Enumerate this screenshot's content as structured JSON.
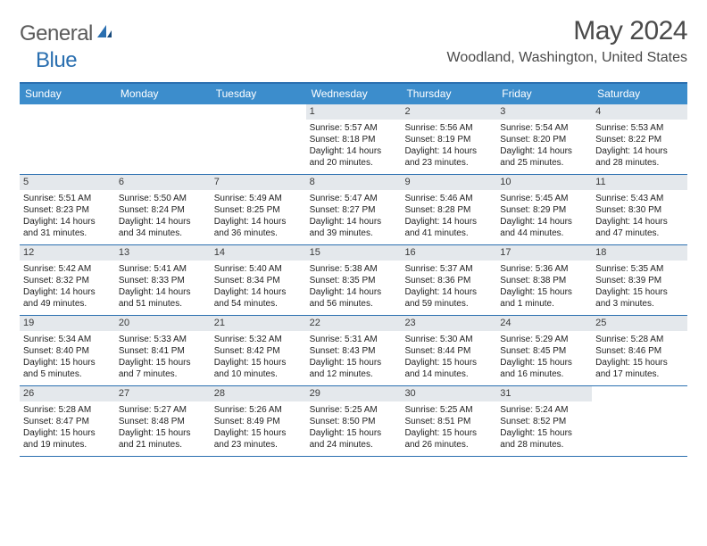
{
  "brand": {
    "part1": "General",
    "part2": "Blue"
  },
  "title": {
    "month": "May 2024",
    "location": "Woodland, Washington, United States"
  },
  "colors": {
    "header_bg": "#3c8dcc",
    "border": "#2a6fb0",
    "daynum_bg": "#e4e8ec",
    "text": "#222222",
    "title_text": "#4a4a4a"
  },
  "day_headers": [
    "Sunday",
    "Monday",
    "Tuesday",
    "Wednesday",
    "Thursday",
    "Friday",
    "Saturday"
  ],
  "weeks": [
    [
      {
        "n": "",
        "sunrise": "",
        "sunset": "",
        "daylight": ""
      },
      {
        "n": "",
        "sunrise": "",
        "sunset": "",
        "daylight": ""
      },
      {
        "n": "",
        "sunrise": "",
        "sunset": "",
        "daylight": ""
      },
      {
        "n": "1",
        "sunrise": "Sunrise: 5:57 AM",
        "sunset": "Sunset: 8:18 PM",
        "daylight": "Daylight: 14 hours and 20 minutes."
      },
      {
        "n": "2",
        "sunrise": "Sunrise: 5:56 AM",
        "sunset": "Sunset: 8:19 PM",
        "daylight": "Daylight: 14 hours and 23 minutes."
      },
      {
        "n": "3",
        "sunrise": "Sunrise: 5:54 AM",
        "sunset": "Sunset: 8:20 PM",
        "daylight": "Daylight: 14 hours and 25 minutes."
      },
      {
        "n": "4",
        "sunrise": "Sunrise: 5:53 AM",
        "sunset": "Sunset: 8:22 PM",
        "daylight": "Daylight: 14 hours and 28 minutes."
      }
    ],
    [
      {
        "n": "5",
        "sunrise": "Sunrise: 5:51 AM",
        "sunset": "Sunset: 8:23 PM",
        "daylight": "Daylight: 14 hours and 31 minutes."
      },
      {
        "n": "6",
        "sunrise": "Sunrise: 5:50 AM",
        "sunset": "Sunset: 8:24 PM",
        "daylight": "Daylight: 14 hours and 34 minutes."
      },
      {
        "n": "7",
        "sunrise": "Sunrise: 5:49 AM",
        "sunset": "Sunset: 8:25 PM",
        "daylight": "Daylight: 14 hours and 36 minutes."
      },
      {
        "n": "8",
        "sunrise": "Sunrise: 5:47 AM",
        "sunset": "Sunset: 8:27 PM",
        "daylight": "Daylight: 14 hours and 39 minutes."
      },
      {
        "n": "9",
        "sunrise": "Sunrise: 5:46 AM",
        "sunset": "Sunset: 8:28 PM",
        "daylight": "Daylight: 14 hours and 41 minutes."
      },
      {
        "n": "10",
        "sunrise": "Sunrise: 5:45 AM",
        "sunset": "Sunset: 8:29 PM",
        "daylight": "Daylight: 14 hours and 44 minutes."
      },
      {
        "n": "11",
        "sunrise": "Sunrise: 5:43 AM",
        "sunset": "Sunset: 8:30 PM",
        "daylight": "Daylight: 14 hours and 47 minutes."
      }
    ],
    [
      {
        "n": "12",
        "sunrise": "Sunrise: 5:42 AM",
        "sunset": "Sunset: 8:32 PM",
        "daylight": "Daylight: 14 hours and 49 minutes."
      },
      {
        "n": "13",
        "sunrise": "Sunrise: 5:41 AM",
        "sunset": "Sunset: 8:33 PM",
        "daylight": "Daylight: 14 hours and 51 minutes."
      },
      {
        "n": "14",
        "sunrise": "Sunrise: 5:40 AM",
        "sunset": "Sunset: 8:34 PM",
        "daylight": "Daylight: 14 hours and 54 minutes."
      },
      {
        "n": "15",
        "sunrise": "Sunrise: 5:38 AM",
        "sunset": "Sunset: 8:35 PM",
        "daylight": "Daylight: 14 hours and 56 minutes."
      },
      {
        "n": "16",
        "sunrise": "Sunrise: 5:37 AM",
        "sunset": "Sunset: 8:36 PM",
        "daylight": "Daylight: 14 hours and 59 minutes."
      },
      {
        "n": "17",
        "sunrise": "Sunrise: 5:36 AM",
        "sunset": "Sunset: 8:38 PM",
        "daylight": "Daylight: 15 hours and 1 minute."
      },
      {
        "n": "18",
        "sunrise": "Sunrise: 5:35 AM",
        "sunset": "Sunset: 8:39 PM",
        "daylight": "Daylight: 15 hours and 3 minutes."
      }
    ],
    [
      {
        "n": "19",
        "sunrise": "Sunrise: 5:34 AM",
        "sunset": "Sunset: 8:40 PM",
        "daylight": "Daylight: 15 hours and 5 minutes."
      },
      {
        "n": "20",
        "sunrise": "Sunrise: 5:33 AM",
        "sunset": "Sunset: 8:41 PM",
        "daylight": "Daylight: 15 hours and 7 minutes."
      },
      {
        "n": "21",
        "sunrise": "Sunrise: 5:32 AM",
        "sunset": "Sunset: 8:42 PM",
        "daylight": "Daylight: 15 hours and 10 minutes."
      },
      {
        "n": "22",
        "sunrise": "Sunrise: 5:31 AM",
        "sunset": "Sunset: 8:43 PM",
        "daylight": "Daylight: 15 hours and 12 minutes."
      },
      {
        "n": "23",
        "sunrise": "Sunrise: 5:30 AM",
        "sunset": "Sunset: 8:44 PM",
        "daylight": "Daylight: 15 hours and 14 minutes."
      },
      {
        "n": "24",
        "sunrise": "Sunrise: 5:29 AM",
        "sunset": "Sunset: 8:45 PM",
        "daylight": "Daylight: 15 hours and 16 minutes."
      },
      {
        "n": "25",
        "sunrise": "Sunrise: 5:28 AM",
        "sunset": "Sunset: 8:46 PM",
        "daylight": "Daylight: 15 hours and 17 minutes."
      }
    ],
    [
      {
        "n": "26",
        "sunrise": "Sunrise: 5:28 AM",
        "sunset": "Sunset: 8:47 PM",
        "daylight": "Daylight: 15 hours and 19 minutes."
      },
      {
        "n": "27",
        "sunrise": "Sunrise: 5:27 AM",
        "sunset": "Sunset: 8:48 PM",
        "daylight": "Daylight: 15 hours and 21 minutes."
      },
      {
        "n": "28",
        "sunrise": "Sunrise: 5:26 AM",
        "sunset": "Sunset: 8:49 PM",
        "daylight": "Daylight: 15 hours and 23 minutes."
      },
      {
        "n": "29",
        "sunrise": "Sunrise: 5:25 AM",
        "sunset": "Sunset: 8:50 PM",
        "daylight": "Daylight: 15 hours and 24 minutes."
      },
      {
        "n": "30",
        "sunrise": "Sunrise: 5:25 AM",
        "sunset": "Sunset: 8:51 PM",
        "daylight": "Daylight: 15 hours and 26 minutes."
      },
      {
        "n": "31",
        "sunrise": "Sunrise: 5:24 AM",
        "sunset": "Sunset: 8:52 PM",
        "daylight": "Daylight: 15 hours and 28 minutes."
      },
      {
        "n": "",
        "sunrise": "",
        "sunset": "",
        "daylight": ""
      }
    ]
  ]
}
